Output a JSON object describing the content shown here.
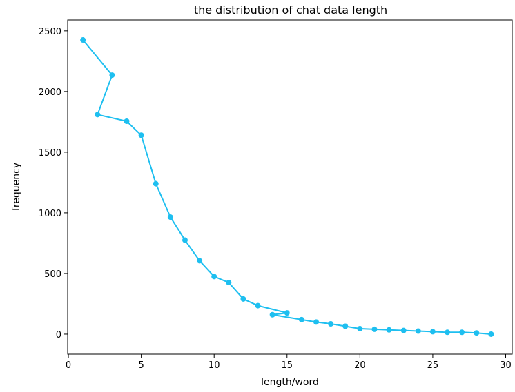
{
  "chart_data": {
    "type": "line",
    "title": "the distribution of chat data length",
    "xlabel": "length/word",
    "ylabel": "frequency",
    "xlim": [
      -0.05,
      30.45
    ],
    "ylim": [
      -165,
      2590
    ],
    "xticks": [
      0,
      5,
      10,
      15,
      20,
      25,
      30
    ],
    "yticks": [
      0,
      500,
      1000,
      1500,
      2000,
      2500
    ],
    "grid": false,
    "color": "#1ebff0",
    "series": [
      {
        "x": [
          1,
          3,
          2,
          4,
          5,
          6,
          7,
          8,
          9,
          10,
          11,
          12,
          13,
          15,
          14,
          16,
          17,
          18,
          19,
          20,
          21,
          22,
          23,
          24,
          25,
          26,
          27,
          28,
          29
        ],
        "y": [
          2425,
          2135,
          1810,
          1755,
          1640,
          1240,
          965,
          775,
          605,
          475,
          425,
          290,
          235,
          175,
          160,
          120,
          100,
          85,
          65,
          45,
          40,
          35,
          30,
          25,
          20,
          15,
          15,
          10,
          0
        ]
      }
    ]
  }
}
